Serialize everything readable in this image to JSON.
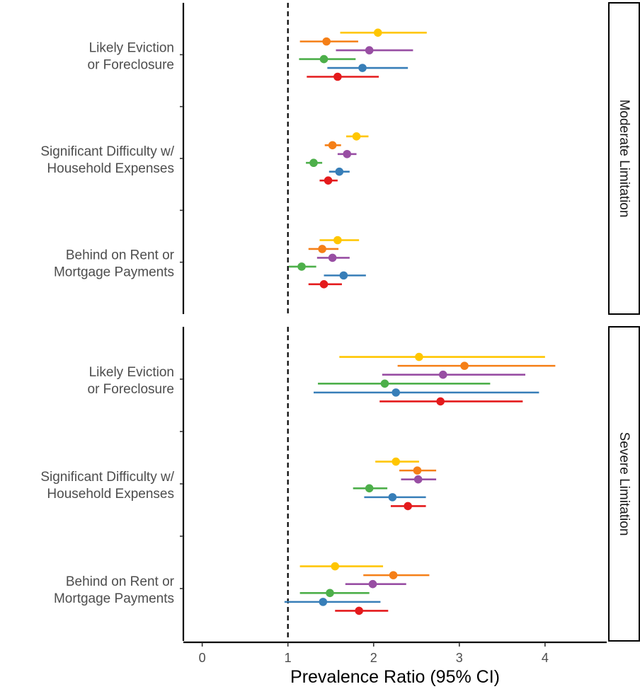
{
  "chart_data": {
    "type": "forest",
    "xlabel": "Prevalence Ratio (95% CI)",
    "xlim": [
      -0.22,
      4.72
    ],
    "x_ticks": [
      "0",
      "1",
      "2",
      "3",
      "4"
    ],
    "reference_line": 1,
    "colors": [
      "#FFC600",
      "#F57F17",
      "#984EA3",
      "#4DAF4A",
      "#377EB8",
      "#E41A1C"
    ],
    "panels": [
      {
        "strip_label": "Moderate Limitation",
        "groups": [
          {
            "label_lines": [
              "Likely Eviction",
              "or Foreclosure"
            ],
            "estimates": [
              {
                "pr": 2.05,
                "lo": 1.61,
                "hi": 2.62
              },
              {
                "pr": 1.45,
                "lo": 1.14,
                "hi": 1.82
              },
              {
                "pr": 1.95,
                "lo": 1.56,
                "hi": 2.46
              },
              {
                "pr": 1.42,
                "lo": 1.13,
                "hi": 1.79
              },
              {
                "pr": 1.87,
                "lo": 1.46,
                "hi": 2.4
              },
              {
                "pr": 1.58,
                "lo": 1.22,
                "hi": 2.06
              }
            ]
          },
          {
            "label_lines": [
              "Significant Difficulty w/",
              "Household Expenses"
            ],
            "estimates": [
              {
                "pr": 1.8,
                "lo": 1.68,
                "hi": 1.94
              },
              {
                "pr": 1.52,
                "lo": 1.43,
                "hi": 1.62
              },
              {
                "pr": 1.69,
                "lo": 1.58,
                "hi": 1.8
              },
              {
                "pr": 1.3,
                "lo": 1.21,
                "hi": 1.4
              },
              {
                "pr": 1.6,
                "lo": 1.48,
                "hi": 1.72
              },
              {
                "pr": 1.47,
                "lo": 1.37,
                "hi": 1.58
              }
            ]
          },
          {
            "label_lines": [
              "Behind on Rent or",
              "Mortgage Payments"
            ],
            "estimates": [
              {
                "pr": 1.58,
                "lo": 1.37,
                "hi": 1.83
              },
              {
                "pr": 1.4,
                "lo": 1.24,
                "hi": 1.59
              },
              {
                "pr": 1.52,
                "lo": 1.34,
                "hi": 1.72
              },
              {
                "pr": 1.16,
                "lo": 1.01,
                "hi": 1.33
              },
              {
                "pr": 1.65,
                "lo": 1.42,
                "hi": 1.91
              },
              {
                "pr": 1.42,
                "lo": 1.24,
                "hi": 1.63
              }
            ]
          }
        ]
      },
      {
        "strip_label": "Severe Limitation",
        "groups": [
          {
            "label_lines": [
              "Likely Eviction",
              "or Foreclosure"
            ],
            "estimates": [
              {
                "pr": 2.53,
                "lo": 1.6,
                "hi": 4.0
              },
              {
                "pr": 3.06,
                "lo": 2.28,
                "hi": 4.12
              },
              {
                "pr": 2.81,
                "lo": 2.1,
                "hi": 3.77
              },
              {
                "pr": 2.13,
                "lo": 1.35,
                "hi": 3.36
              },
              {
                "pr": 2.26,
                "lo": 1.3,
                "hi": 3.93
              },
              {
                "pr": 2.78,
                "lo": 2.07,
                "hi": 3.74
              }
            ]
          },
          {
            "label_lines": [
              "Significant Difficulty w/",
              "Household Expenses"
            ],
            "estimates": [
              {
                "pr": 2.26,
                "lo": 2.02,
                "hi": 2.53
              },
              {
                "pr": 2.51,
                "lo": 2.3,
                "hi": 2.73
              },
              {
                "pr": 2.52,
                "lo": 2.32,
                "hi": 2.73
              },
              {
                "pr": 1.95,
                "lo": 1.76,
                "hi": 2.16
              },
              {
                "pr": 2.22,
                "lo": 1.89,
                "hi": 2.61
              },
              {
                "pr": 2.4,
                "lo": 2.2,
                "hi": 2.61
              }
            ]
          },
          {
            "label_lines": [
              "Behind on Rent or",
              "Mortgage Payments"
            ],
            "estimates": [
              {
                "pr": 1.55,
                "lo": 1.14,
                "hi": 2.11
              },
              {
                "pr": 2.23,
                "lo": 1.88,
                "hi": 2.65
              },
              {
                "pr": 1.99,
                "lo": 1.67,
                "hi": 2.38
              },
              {
                "pr": 1.49,
                "lo": 1.14,
                "hi": 1.95
              },
              {
                "pr": 1.41,
                "lo": 0.96,
                "hi": 2.08
              },
              {
                "pr": 1.83,
                "lo": 1.55,
                "hi": 2.17
              }
            ]
          }
        ]
      }
    ]
  }
}
